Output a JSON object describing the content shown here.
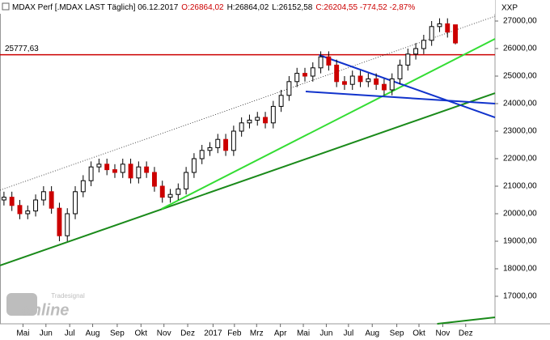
{
  "header": {
    "instrument": "MDAX Perf [.MDAX LAST Täglich] 06.12.2017",
    "open": "O:26864,02",
    "high": "H:26864,02",
    "low": "L:26152,58",
    "close": "C:26204,55 -774,52 -2,87%",
    "scale_label": "XXP"
  },
  "logo": {
    "brand": "Tradesignal",
    "name": "online"
  },
  "chart_data": {
    "type": "candlestick",
    "open": [
      20500,
      20600,
      20300,
      20000,
      20100,
      20500,
      20800,
      20200,
      19200,
      20000,
      20800,
      21200,
      21700,
      21800,
      21600,
      21500,
      21800,
      21300,
      21700,
      21500,
      21000,
      20600,
      20700,
      20900,
      21500,
      22000,
      22300,
      22400,
      22700,
      22300,
      23000,
      23300,
      23400,
      23500,
      23300,
      23900,
      24300,
      24800,
      25100,
      25000,
      25300,
      25700,
      25400,
      24800,
      24700,
      25000,
      24800,
      24900,
      24700,
      24500,
      24900,
      25400,
      25800,
      26000,
      26300,
      26800,
      26900,
      26864.02
    ],
    "high": [
      20800,
      20800,
      20500,
      20300,
      20700,
      21000,
      21000,
      20400,
      20200,
      21000,
      21400,
      21900,
      22000,
      22000,
      21800,
      22000,
      22000,
      21900,
      21900,
      21700,
      21200,
      20900,
      21100,
      21700,
      22200,
      22500,
      22600,
      22900,
      22900,
      23200,
      23500,
      23600,
      23700,
      23700,
      24100,
      24500,
      25000,
      25300,
      25300,
      25500,
      25900,
      25900,
      25600,
      25000,
      25200,
      25200,
      25100,
      25100,
      24900,
      25100,
      25600,
      26000,
      26200,
      26500,
      27000,
      27100,
      27100,
      26864.02
    ],
    "low": [
      20300,
      20100,
      19800,
      19800,
      19900,
      20300,
      20000,
      19000,
      19000,
      19800,
      20600,
      21000,
      21500,
      21400,
      21300,
      21300,
      21100,
      21100,
      21300,
      20800,
      20400,
      20400,
      20500,
      20700,
      21300,
      21800,
      22100,
      22200,
      22100,
      22100,
      22800,
      23100,
      23200,
      23100,
      23100,
      23700,
      24100,
      24600,
      24800,
      24800,
      25100,
      25200,
      24600,
      24500,
      24500,
      24600,
      24600,
      24500,
      24300,
      24300,
      24700,
      25200,
      25600,
      25800,
      26100,
      26600,
      26400,
      26152.58
    ],
    "close": [
      20600,
      20300,
      20000,
      20100,
      20500,
      20800,
      20200,
      19200,
      20000,
      20800,
      21200,
      21700,
      21800,
      21600,
      21500,
      21800,
      21300,
      21700,
      21500,
      21000,
      20600,
      20700,
      20900,
      21500,
      22000,
      22300,
      22400,
      22700,
      22300,
      23000,
      23300,
      23400,
      23500,
      23300,
      23900,
      24300,
      24800,
      25100,
      25000,
      25300,
      25700,
      25400,
      24800,
      24700,
      25000,
      24800,
      24900,
      24700,
      24500,
      24900,
      25400,
      25800,
      26000,
      26300,
      26800,
      26900,
      26600,
      26204.55
    ],
    "up_color": "#ffffff",
    "down_color": "#cc0000",
    "xlim": [
      0,
      62.5
    ],
    "xticks": [
      {
        "value": 2.9,
        "label": "Mai"
      },
      {
        "value": 5.8,
        "label": "Jun"
      },
      {
        "value": 8.8,
        "label": "Jul"
      },
      {
        "value": 11.7,
        "label": "Aug"
      },
      {
        "value": 14.8,
        "label": "Sep"
      },
      {
        "value": 17.8,
        "label": "Okt"
      },
      {
        "value": 20.7,
        "label": "Nov"
      },
      {
        "value": 23.7,
        "label": "Dez"
      },
      {
        "value": 26.9,
        "label": "2017"
      },
      {
        "value": 29.6,
        "label": "Feb"
      },
      {
        "value": 32.4,
        "label": "Mrz"
      },
      {
        "value": 35.4,
        "label": "Apr"
      },
      {
        "value": 38.3,
        "label": "Mai"
      },
      {
        "value": 41.2,
        "label": "Jun"
      },
      {
        "value": 44.0,
        "label": "Jul"
      },
      {
        "value": 47.0,
        "label": "Aug"
      },
      {
        "value": 50.1,
        "label": "Sep"
      },
      {
        "value": 52.9,
        "label": "Okt"
      },
      {
        "value": 55.9,
        "label": "Nov"
      },
      {
        "value": 58.8,
        "label": "Dez"
      }
    ],
    "ylim": [
      16000,
      27765
    ],
    "yticks": [
      {
        "value": 17000,
        "label": "17000,00"
      },
      {
        "value": 18000,
        "label": "18000,00"
      },
      {
        "value": 19000,
        "label": "19000,00"
      },
      {
        "value": 20000,
        "label": "20000,00"
      },
      {
        "value": 21000,
        "label": "21000,00"
      },
      {
        "value": 22000,
        "label": "22000,00"
      },
      {
        "value": 23000,
        "label": "23000,00"
      },
      {
        "value": 24000,
        "label": "24000,00"
      },
      {
        "value": 25000,
        "label": "25000,00"
      },
      {
        "value": 26000,
        "label": "26000,00"
      },
      {
        "value": 27000,
        "label": "27000,00"
      }
    ],
    "hlines": [
      {
        "value": 25777.63,
        "label": "25777,63",
        "color": "#cc0000"
      }
    ],
    "trendlines": [
      {
        "color": "#000000",
        "dashed": true,
        "x": [
          0,
          62.5
        ],
        "y": [
          20853,
          27176
        ]
      },
      {
        "color": "#1a8a1a",
        "dashed": false,
        "x": [
          0,
          62.5
        ],
        "y": [
          18118,
          24382
        ]
      },
      {
        "color": "#33dd33",
        "dashed": false,
        "x": [
          20.4,
          62.5
        ],
        "y": [
          20176,
          26353
        ]
      },
      {
        "color": "#1133cc",
        "dashed": false,
        "x": [
          40.3,
          62.5
        ],
        "y": [
          25765,
          23500
        ]
      },
      {
        "color": "#1133cc",
        "dashed": false,
        "x": [
          38.6,
          62.5
        ],
        "y": [
          24441,
          24000
        ]
      },
      {
        "color": "#1a8a1a",
        "dashed": false,
        "x": [
          55.2,
          62.5
        ],
        "y": [
          16000,
          16235
        ]
      }
    ]
  }
}
